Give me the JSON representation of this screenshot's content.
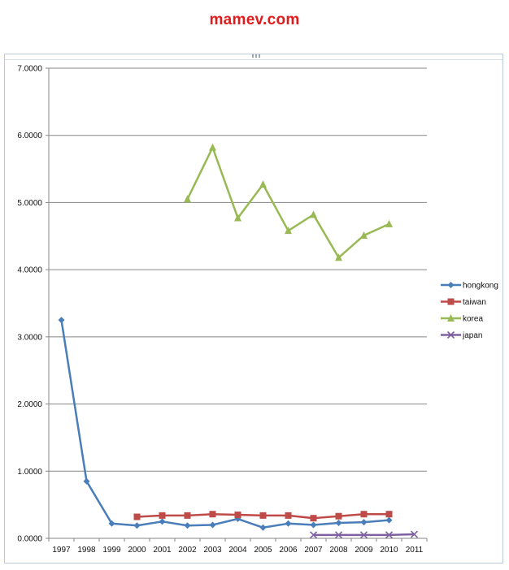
{
  "watermark": "mamev.com",
  "chart_data": {
    "type": "line",
    "title": "",
    "xlabel": "",
    "ylabel": "",
    "ylim": [
      0,
      7
    ],
    "yticks": [
      "0.0000",
      "1.0000",
      "2.0000",
      "3.0000",
      "4.0000",
      "5.0000",
      "6.0000",
      "7.0000"
    ],
    "x": [
      "1997",
      "1998",
      "1999",
      "2000",
      "2001",
      "2002",
      "2003",
      "2004",
      "2005",
      "2006",
      "2007",
      "2008",
      "2009",
      "2010",
      "2011"
    ],
    "grid": true,
    "legend_position": "right",
    "series": [
      {
        "name": "hongkong",
        "color": "#4a7ebb",
        "marker": "diamond",
        "values": [
          3.25,
          0.85,
          0.22,
          0.19,
          0.25,
          0.19,
          0.2,
          0.29,
          0.16,
          0.22,
          0.2,
          0.23,
          0.24,
          0.27,
          null
        ]
      },
      {
        "name": "taiwan",
        "color": "#be4b48",
        "marker": "square",
        "values": [
          null,
          null,
          null,
          0.32,
          0.34,
          0.34,
          0.36,
          0.35,
          0.34,
          0.34,
          0.3,
          0.33,
          0.36,
          0.36,
          null
        ]
      },
      {
        "name": "korea",
        "color": "#98b954",
        "marker": "triangle",
        "values": [
          null,
          null,
          null,
          null,
          null,
          5.05,
          5.82,
          4.77,
          5.27,
          4.58,
          4.82,
          4.18,
          4.51,
          4.68,
          null
        ]
      },
      {
        "name": "japan",
        "color": "#7d60a0",
        "marker": "x",
        "values": [
          null,
          null,
          null,
          null,
          null,
          null,
          null,
          null,
          null,
          null,
          0.05,
          0.05,
          0.05,
          0.05,
          0.06
        ]
      }
    ]
  }
}
